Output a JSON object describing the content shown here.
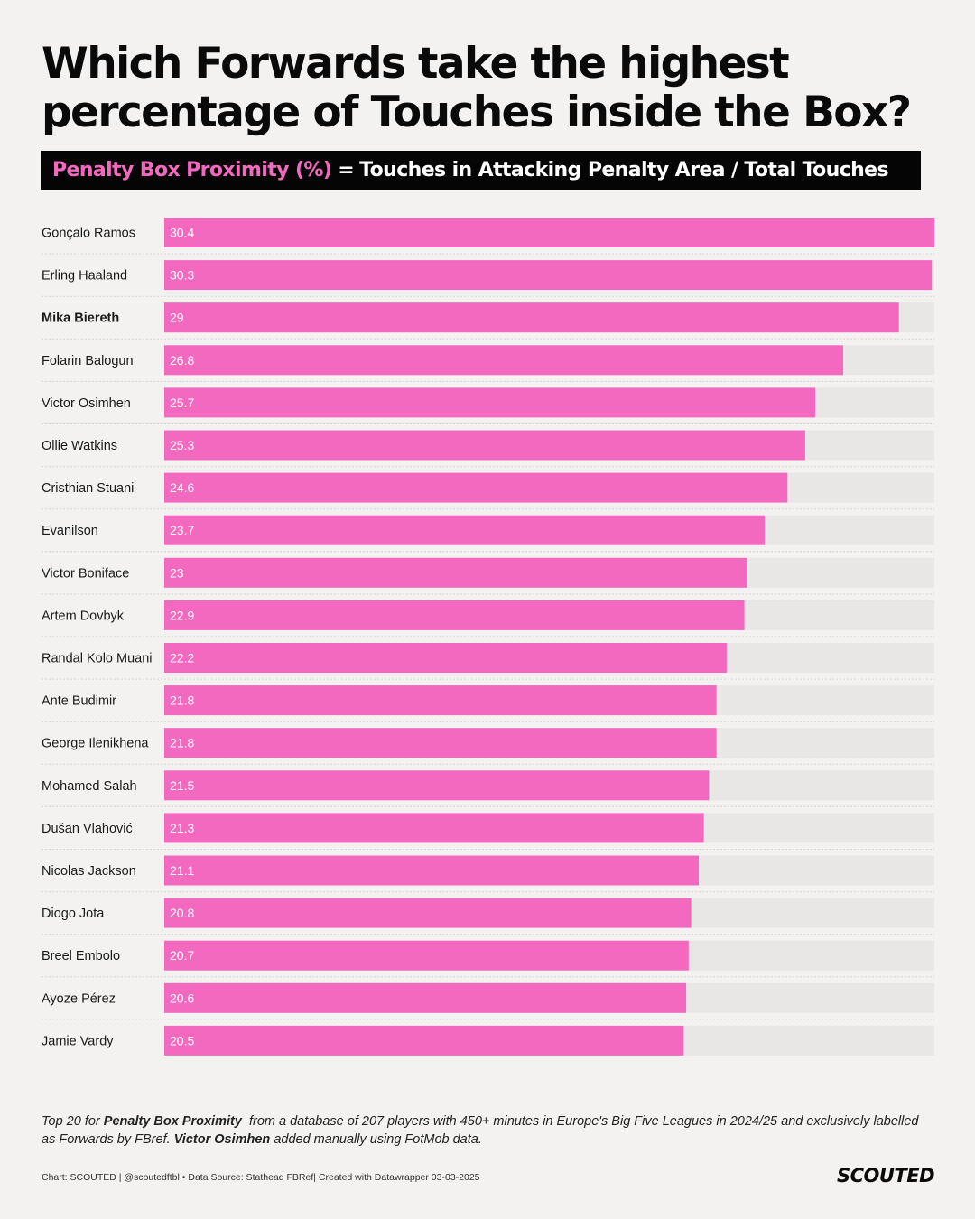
{
  "header": {
    "title_line1": "Which Forwards take the highest",
    "title_line2": "percentage of Touches inside the Box?",
    "metric_name": "Penalty Box Proximity (%)",
    "equals": "=",
    "metric_formula": "Touches in Attacking Penalty Area / Total Touches"
  },
  "colors": {
    "bar": "#f469c0",
    "track": "#e8e7e6",
    "separator": "#d6d5d4"
  },
  "chart_data": {
    "type": "bar",
    "orientation": "horizontal",
    "title": "Which Forwards take the highest percentage of Touches inside the Box?",
    "xlabel": "Penalty Box Proximity (%)",
    "ylabel": "",
    "xlim": [
      0,
      30.4
    ],
    "highlight": [
      "Mika Biereth"
    ],
    "categories": [
      "Gonçalo Ramos",
      "Erling Haaland",
      "Mika Biereth",
      "Folarin Balogun",
      "Victor Osimhen",
      "Ollie Watkins",
      "Cristhian Stuani",
      "Evanilson",
      "Victor Boniface",
      "Artem Dovbyk",
      "Randal Kolo Muani",
      "Ante Budimir",
      "George Ilenikhena",
      "Mohamed Salah",
      "Dušan Vlahović",
      "Nicolas Jackson",
      "Diogo Jota",
      "Breel Embolo",
      "Ayoze Pérez",
      "Jamie Vardy"
    ],
    "values": [
      30.4,
      30.3,
      29,
      26.8,
      25.7,
      25.3,
      24.6,
      23.7,
      23,
      22.9,
      22.2,
      21.8,
      21.8,
      21.5,
      21.3,
      21.1,
      20.8,
      20.7,
      20.6,
      20.5
    ]
  },
  "footnote": {
    "part1": "Top 20 for ",
    "metric": "Penalty Box Proximity",
    "part2": "  from a database of 207 players with 450+ minutes in Europe's Big Five Leagues in 2024/25 and exclusively labelled as Forwards by FBref. ",
    "player": "Victor Osimhen",
    "part3": " added manually using FotMob data."
  },
  "credits": "Chart: SCOUTED | @scoutedftbl • Data Source: Stathead FBRef| Created with Datawrapper 03-03-2025",
  "brand": "SCOUTED"
}
